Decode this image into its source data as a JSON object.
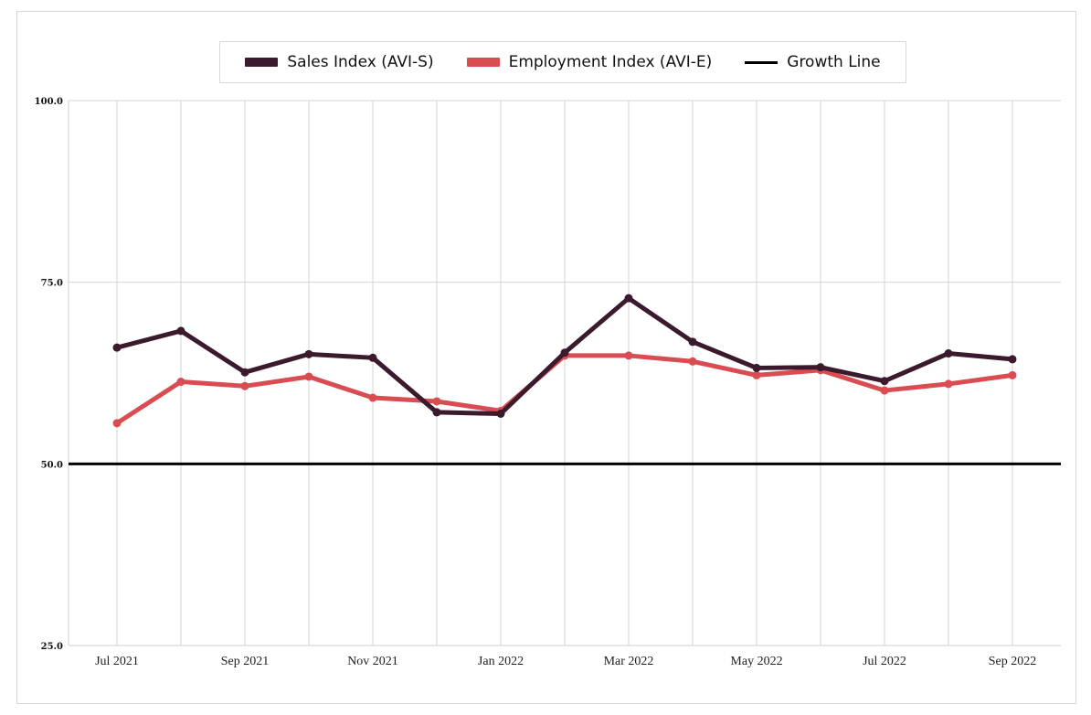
{
  "chart_data": {
    "type": "line",
    "title": "",
    "xlabel": "",
    "ylabel": "",
    "ylim": [
      25,
      100
    ],
    "y_ticks": [
      "100.0",
      "75.0",
      "50.0",
      "25.0"
    ],
    "y_tick_values": [
      100,
      75,
      50,
      25
    ],
    "categories": [
      "Jul 2021",
      "Aug 2021",
      "Sep 2021",
      "Oct 2021",
      "Nov 2021",
      "Dec 2021",
      "Jan 2022",
      "Feb 2022",
      "Mar 2022",
      "Apr 2022",
      "May 2022",
      "Jun 2022",
      "Jul 2022",
      "Aug 2022",
      "Sep 2022"
    ],
    "x_tick_labels": [
      "Jul 2021",
      "",
      "Sep 2021",
      "",
      "Nov 2021",
      "",
      "Jan 2022",
      "",
      "Mar 2022",
      "",
      "May 2022",
      "",
      "Jul 2022",
      "",
      "Sep 2022"
    ],
    "series": [
      {
        "name": "Sales Index (AVI-S)",
        "color": "#3a1a2c",
        "values": [
          66.0,
          68.3,
          62.6,
          65.1,
          64.6,
          57.1,
          56.9,
          65.3,
          72.8,
          66.8,
          63.2,
          63.3,
          61.4,
          65.2,
          64.4
        ]
      },
      {
        "name": "Employment Index (AVI-E)",
        "color": "#d94c52",
        "values": [
          55.6,
          61.3,
          60.7,
          62.0,
          59.1,
          58.6,
          57.3,
          64.9,
          64.9,
          64.1,
          62.2,
          62.9,
          60.1,
          61.0,
          62.2
        ]
      }
    ],
    "reference_line": {
      "name": "Growth Line",
      "value": 50,
      "color": "#000000"
    },
    "legend_position": "top-center",
    "grid": true
  }
}
